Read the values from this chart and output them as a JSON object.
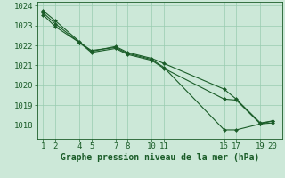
{
  "title": "Graphe pression niveau de la mer (hPa)",
  "background_color": "#cce8d8",
  "grid_color": "#99ccb0",
  "line_color": "#1a5c28",
  "x_ticks": [
    1,
    2,
    4,
    5,
    7,
    8,
    10,
    11,
    16,
    17,
    19,
    20
  ],
  "xlim": [
    0.5,
    20.8
  ],
  "ylim": [
    1017.3,
    1024.2
  ],
  "y_ticks": [
    1018,
    1019,
    1020,
    1021,
    1022,
    1023,
    1024
  ],
  "series": [
    [
      1023.75,
      1023.25,
      1022.2,
      1021.7,
      1021.95,
      1021.65,
      1021.35,
      1021.1,
      1019.8,
      1019.3,
      1018.1,
      1018.2
    ],
    [
      1023.65,
      1023.1,
      1022.15,
      1021.65,
      1021.85,
      1021.55,
      1021.25,
      1020.85,
      1019.3,
      1019.25,
      1018.05,
      1018.1
    ],
    [
      1023.55,
      1022.95,
      1022.15,
      1021.75,
      1021.9,
      1021.6,
      1021.3,
      1020.9,
      1017.75,
      1017.75,
      1018.05,
      1018.2
    ]
  ],
  "xlabel_fontsize": 7.0,
  "tick_fontsize": 6.5,
  "marker": "D",
  "marker_size": 2.0,
  "linewidth": 0.8
}
